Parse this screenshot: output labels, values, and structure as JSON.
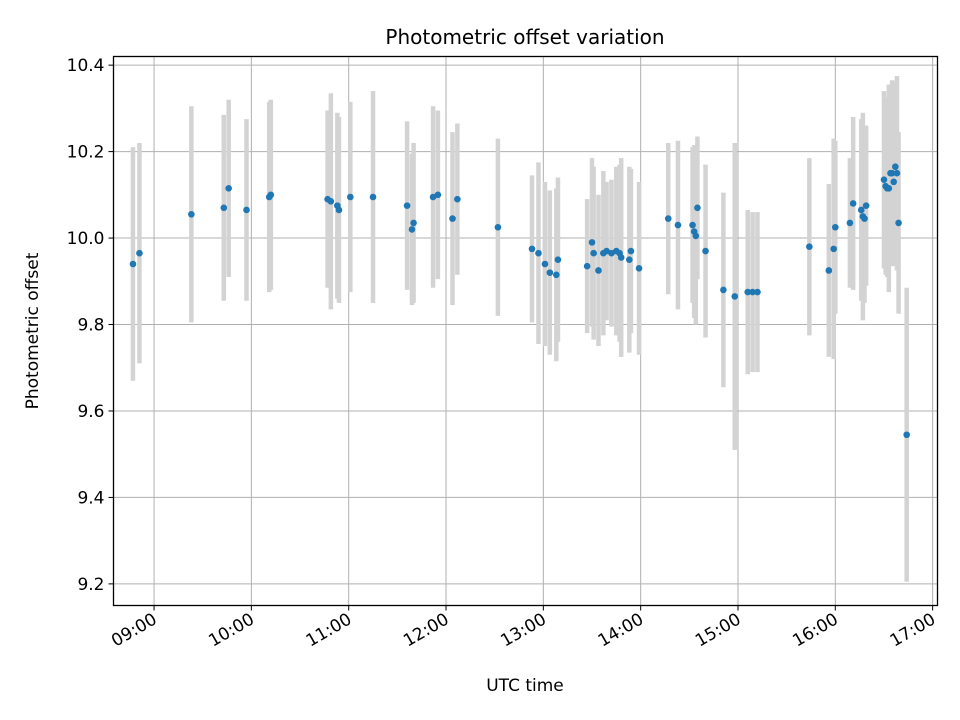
{
  "chart_data": {
    "type": "scatter",
    "title": "Photometric offset variation",
    "xlabel": "UTC time",
    "ylabel": "Photometric offset",
    "x_tick_labels": [
      "09:00",
      "10:00",
      "11:00",
      "12:00",
      "13:00",
      "14:00",
      "15:00",
      "16:00",
      "17:00"
    ],
    "y_tick_labels": [
      "9.2",
      "9.4",
      "9.6",
      "9.8",
      "10.0",
      "10.2",
      "10.4"
    ],
    "ylim": [
      9.15,
      10.42
    ],
    "xlim": [
      "08:35",
      "17:03"
    ],
    "grid": true,
    "colors": {
      "point": "#1f77b4",
      "errorbar": "#d3d3d3",
      "grid": "#b0b0b0"
    },
    "series": [
      {
        "x": [
          "08:47",
          "08:51",
          "09:23",
          "09:43",
          "09:46",
          "09:57",
          "10:11",
          "10:12",
          "10:47",
          "10:49",
          "10:53",
          "10:54",
          "11:01",
          "11:15",
          "11:36",
          "11:39",
          "11:40",
          "11:52",
          "11:55",
          "12:04",
          "12:07",
          "12:32",
          "12:53",
          "12:57",
          "13:01",
          "13:04",
          "13:08",
          "13:09",
          "13:27",
          "13:30",
          "13:31",
          "13:34",
          "13:37",
          "13:39",
          "13:42",
          "13:45",
          "13:47",
          "13:48",
          "13:53",
          "13:54",
          "13:59",
          "14:17",
          "14:23",
          "14:32",
          "14:33",
          "14:34",
          "14:35",
          "14:40",
          "14:51",
          "14:58",
          "15:06",
          "15:09",
          "15:12",
          "15:44",
          "15:56",
          "15:59",
          "16:00",
          "16:09",
          "16:11",
          "16:16",
          "16:17",
          "16:18",
          "16:19",
          "16:30",
          "16:31",
          "16:32",
          "16:33",
          "16:34",
          "16:35",
          "16:36",
          "16:37",
          "16:38",
          "16:39",
          "16:44"
        ],
        "y": [
          9.94,
          9.965,
          10.055,
          10.07,
          10.115,
          10.065,
          10.095,
          10.1,
          10.09,
          10.085,
          10.075,
          10.065,
          10.095,
          10.095,
          10.075,
          10.02,
          10.035,
          10.095,
          10.1,
          10.045,
          10.09,
          10.025,
          9.975,
          9.965,
          9.94,
          9.92,
          9.915,
          9.95,
          9.935,
          9.99,
          9.965,
          9.925,
          9.965,
          9.97,
          9.965,
          9.97,
          9.965,
          9.955,
          9.95,
          9.97,
          9.93,
          10.045,
          10.03,
          10.03,
          10.015,
          10.005,
          10.07,
          9.97,
          9.88,
          9.865,
          9.875,
          9.875,
          9.875,
          9.98,
          9.925,
          9.975,
          10.025,
          10.035,
          10.08,
          10.065,
          10.05,
          10.045,
          10.075,
          10.135,
          10.12,
          10.115,
          10.115,
          10.15,
          10.15,
          10.13,
          10.165,
          10.15,
          10.035,
          9.545
        ],
        "yerr": [
          0.27,
          0.255,
          0.25,
          0.215,
          0.205,
          0.21,
          0.22,
          0.22,
          0.205,
          0.25,
          0.215,
          0.215,
          0.22,
          0.245,
          0.195,
          0.175,
          0.185,
          0.21,
          0.195,
          0.2,
          0.175,
          0.205,
          0.17,
          0.21,
          0.19,
          0.19,
          0.2,
          0.19,
          0.155,
          0.195,
          0.2,
          0.175,
          0.19,
          0.16,
          0.17,
          0.195,
          0.205,
          0.23,
          0.215,
          0.19,
          0.2,
          0.175,
          0.195,
          0.18,
          0.2,
          0.205,
          0.165,
          0.2,
          0.225,
          0.355,
          0.19,
          0.185,
          0.185,
          0.205,
          0.2,
          0.255,
          0.2,
          0.15,
          0.2,
          0.21,
          0.24,
          0.195,
          0.185,
          0.205,
          0.205,
          0.205,
          0.24,
          0.205,
          0.215,
          0.195,
          0.195,
          0.225,
          0.21,
          0.34
        ]
      }
    ]
  }
}
